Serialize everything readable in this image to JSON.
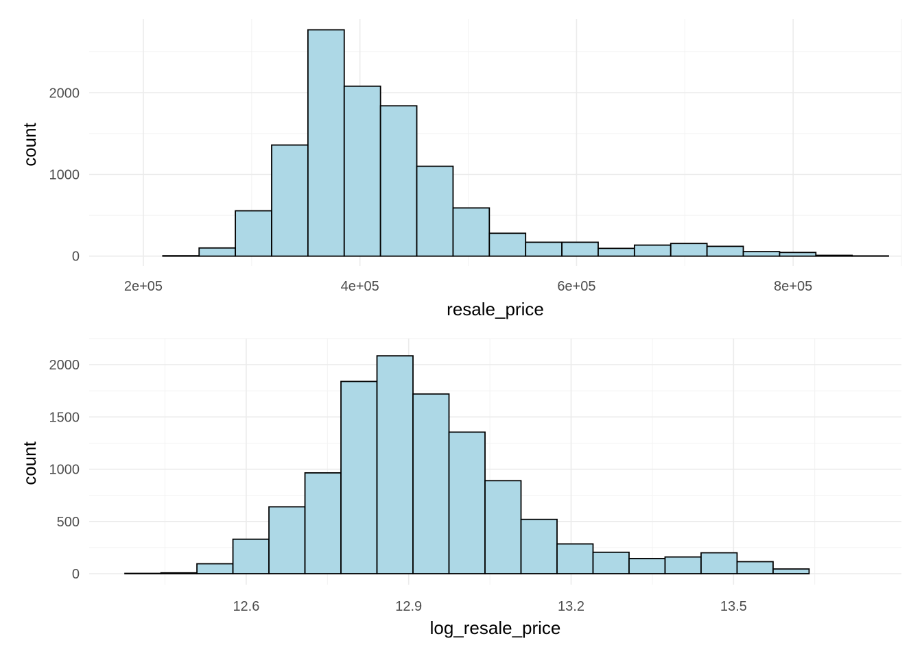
{
  "chart_data": [
    {
      "type": "histogram",
      "xlabel": "resale_price",
      "ylabel": "count",
      "xlim": [
        150000,
        900000
      ],
      "ylim": [
        -120,
        2900
      ],
      "xticks": [
        200000,
        400000,
        600000,
        800000
      ],
      "xtick_labels": [
        "2e+05",
        "4e+05",
        "6e+05",
        "8e+05"
      ],
      "yticks": [
        0,
        1000,
        2000
      ],
      "ytick_labels": [
        "0",
        "1000",
        "2000"
      ],
      "bin_start": 218000,
      "bin_width": 33500,
      "counts": [
        5,
        100,
        555,
        1360,
        2770,
        2080,
        1840,
        1100,
        590,
        280,
        170,
        170,
        95,
        135,
        155,
        120,
        55,
        45,
        10,
        3
      ],
      "fill_color": "#add8e6",
      "edge_color": "#000000",
      "grid": true
    },
    {
      "type": "histogram",
      "xlabel": "log_resale_price",
      "ylabel": "count",
      "xlim": [
        12.31,
        13.81
      ],
      "ylim": [
        -105,
        2250
      ],
      "xticks": [
        12.6,
        12.9,
        13.2,
        13.5
      ],
      "xtick_labels": [
        "12.6",
        "12.9",
        "13.2",
        "13.5"
      ],
      "yticks": [
        0,
        500,
        1000,
        1500,
        2000
      ],
      "ytick_labels": [
        "0",
        "500",
        "1000",
        "1500",
        "2000"
      ],
      "bin_start": 12.376,
      "bin_width": 0.0665,
      "counts": [
        3,
        8,
        95,
        330,
        640,
        965,
        1840,
        2085,
        1720,
        1355,
        890,
        520,
        285,
        205,
        145,
        160,
        200,
        115,
        45,
        0
      ],
      "fill_color": "#add8e6",
      "edge_color": "#000000",
      "grid": true
    }
  ]
}
